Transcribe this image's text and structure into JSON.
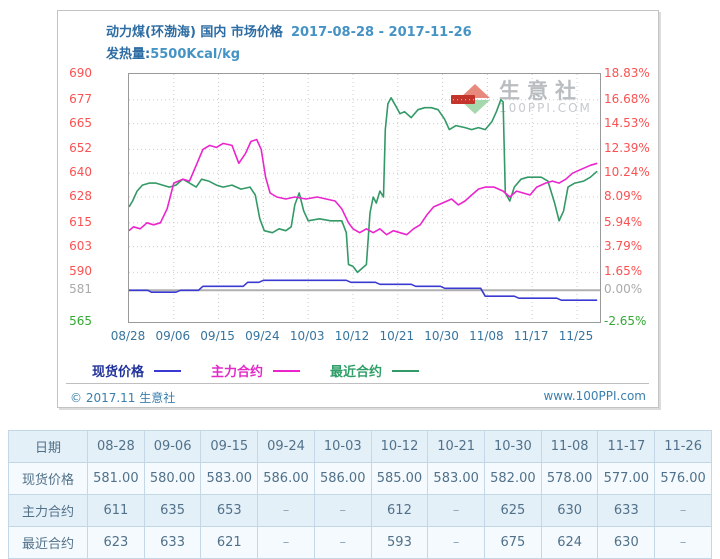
{
  "panel": {
    "title_main": "动力煤(环渤海) 国内 市场价格",
    "title_dates": "2017-08-28 - 2017-11-26",
    "subtitle_label": "发热量:",
    "subtitle_value": "5500Kcal/kg",
    "watermark_name": "生意社",
    "watermark_site": "100PPI.COM",
    "footer_left": "© 2017.11 生意社",
    "footer_right": "www.100PPI.com"
  },
  "chart_data": {
    "type": "line",
    "title": "动力煤(环渤海) 国内 市场价格 2017-08-28 - 2017-11-26",
    "subtitle": "发热量:5500Kcal/kg",
    "grid": true,
    "legend_position": "bottom",
    "ylim": [
      565,
      690
    ],
    "baseline_value": 581,
    "baseline_color": "#b0b0b0",
    "y_left_ticks": [
      690,
      677,
      665,
      652,
      640,
      628,
      615,
      603,
      590,
      581,
      565
    ],
    "y_right_tick_labels": [
      "18.83%",
      "16.68%",
      "14.53%",
      "12.39%",
      "10.24%",
      "8.09%",
      "5.94%",
      "3.79%",
      "1.65%",
      "0.00%",
      "-2.65%"
    ],
    "x_tick_labels": [
      "08/28",
      "09/06",
      "09/15",
      "09/24",
      "10/03",
      "10/12",
      "10/21",
      "10/30",
      "11/08",
      "11/17",
      "11/25"
    ],
    "tick_colors": {
      "positive": "#fa5252",
      "zero": "#aaaaaa",
      "negative": "#33aa33"
    },
    "dates": [
      "08-28",
      "09-06",
      "09-15",
      "09-24",
      "10-03",
      "10-12",
      "10-21",
      "10-30",
      "11-08",
      "11-17",
      "11-26"
    ],
    "series": [
      {
        "name": "现货价格",
        "color": "#3a3ad0",
        "label_color": "#22339b",
        "values": [
          581.0,
          580.0,
          583.0,
          586.0,
          586.0,
          585.0,
          583.0,
          582.0,
          578.0,
          577.0,
          576.0
        ]
      },
      {
        "name": "主力合约",
        "color": "#ea25cd",
        "label_color": "#e22ac8",
        "values": [
          611,
          635,
          653,
          null,
          null,
          612,
          null,
          625,
          630,
          633,
          null
        ]
      },
      {
        "name": "最近合约",
        "color": "#339966",
        "label_color": "#2f9e68",
        "values": [
          623,
          633,
          621,
          null,
          null,
          593,
          null,
          675,
          624,
          630,
          null
        ]
      }
    ],
    "render_paths": {
      "spot": [
        [
          0,
          581
        ],
        [
          0.42,
          581
        ],
        [
          0.5,
          580
        ],
        [
          1.05,
          580
        ],
        [
          1.15,
          581
        ],
        [
          1.55,
          581
        ],
        [
          1.65,
          583
        ],
        [
          2.55,
          583
        ],
        [
          2.65,
          585
        ],
        [
          2.9,
          585
        ],
        [
          3.0,
          586
        ],
        [
          4.85,
          586
        ],
        [
          4.95,
          585
        ],
        [
          5.5,
          585
        ],
        [
          5.6,
          584
        ],
        [
          6.3,
          584
        ],
        [
          6.4,
          583
        ],
        [
          6.95,
          583
        ],
        [
          7.05,
          582
        ],
        [
          7.85,
          582
        ],
        [
          7.95,
          578
        ],
        [
          8.6,
          578
        ],
        [
          8.7,
          577
        ],
        [
          9.55,
          577
        ],
        [
          9.65,
          576
        ],
        [
          10.45,
          576
        ]
      ],
      "main": [
        [
          0,
          611
        ],
        [
          0.1,
          613
        ],
        [
          0.25,
          612
        ],
        [
          0.4,
          615
        ],
        [
          0.55,
          614
        ],
        [
          0.7,
          615
        ],
        [
          0.85,
          622
        ],
        [
          1.0,
          635
        ],
        [
          1.2,
          637
        ],
        [
          1.35,
          636
        ],
        [
          1.5,
          644
        ],
        [
          1.65,
          652
        ],
        [
          1.8,
          654
        ],
        [
          1.95,
          653
        ],
        [
          2.1,
          655
        ],
        [
          2.3,
          654
        ],
        [
          2.45,
          645
        ],
        [
          2.6,
          650
        ],
        [
          2.72,
          656
        ],
        [
          2.85,
          657
        ],
        [
          2.95,
          652
        ],
        [
          3.05,
          638
        ],
        [
          3.15,
          630
        ],
        [
          3.3,
          628
        ],
        [
          3.5,
          627
        ],
        [
          3.7,
          628
        ],
        [
          3.95,
          627
        ],
        [
          4.2,
          628
        ],
        [
          4.4,
          627
        ],
        [
          4.6,
          626
        ],
        [
          4.75,
          622
        ],
        [
          4.9,
          615
        ],
        [
          5.0,
          612
        ],
        [
          5.15,
          610
        ],
        [
          5.3,
          612
        ],
        [
          5.45,
          610
        ],
        [
          5.6,
          612
        ],
        [
          5.75,
          609
        ],
        [
          5.9,
          611
        ],
        [
          6.05,
          610
        ],
        [
          6.2,
          609
        ],
        [
          6.35,
          612
        ],
        [
          6.5,
          614
        ],
        [
          6.65,
          619
        ],
        [
          6.8,
          623
        ],
        [
          7.0,
          625
        ],
        [
          7.2,
          627
        ],
        [
          7.35,
          624
        ],
        [
          7.5,
          626
        ],
        [
          7.65,
          629
        ],
        [
          7.8,
          632
        ],
        [
          7.95,
          633
        ],
        [
          8.15,
          633
        ],
        [
          8.35,
          631
        ],
        [
          8.5,
          628
        ],
        [
          8.65,
          631
        ],
        [
          8.8,
          630
        ],
        [
          8.95,
          629
        ],
        [
          9.1,
          633
        ],
        [
          9.3,
          635
        ],
        [
          9.45,
          636
        ],
        [
          9.6,
          635
        ],
        [
          9.75,
          637
        ],
        [
          9.9,
          640
        ],
        [
          10.1,
          642
        ],
        [
          10.3,
          644
        ],
        [
          10.45,
          645
        ]
      ],
      "near": [
        [
          0,
          623
        ],
        [
          0.08,
          626
        ],
        [
          0.18,
          631
        ],
        [
          0.3,
          634
        ],
        [
          0.45,
          635
        ],
        [
          0.6,
          635
        ],
        [
          0.75,
          634
        ],
        [
          0.9,
          633
        ],
        [
          1.05,
          634
        ],
        [
          1.2,
          637
        ],
        [
          1.35,
          635
        ],
        [
          1.5,
          633
        ],
        [
          1.62,
          637
        ],
        [
          1.78,
          636
        ],
        [
          1.95,
          634
        ],
        [
          2.1,
          633
        ],
        [
          2.3,
          634
        ],
        [
          2.5,
          632
        ],
        [
          2.7,
          633
        ],
        [
          2.82,
          629
        ],
        [
          2.92,
          617
        ],
        [
          3.02,
          611
        ],
        [
          3.2,
          610
        ],
        [
          3.35,
          612
        ],
        [
          3.5,
          611
        ],
        [
          3.62,
          613
        ],
        [
          3.7,
          624
        ],
        [
          3.8,
          630
        ],
        [
          3.9,
          621
        ],
        [
          4.0,
          616
        ],
        [
          4.25,
          617
        ],
        [
          4.5,
          616
        ],
        [
          4.75,
          616
        ],
        [
          4.85,
          610
        ],
        [
          4.9,
          594
        ],
        [
          5.0,
          593
        ],
        [
          5.1,
          590
        ],
        [
          5.2,
          592
        ],
        [
          5.3,
          594
        ],
        [
          5.38,
          620
        ],
        [
          5.45,
          628
        ],
        [
          5.52,
          625
        ],
        [
          5.6,
          631
        ],
        [
          5.68,
          628
        ],
        [
          5.72,
          662
        ],
        [
          5.78,
          675
        ],
        [
          5.85,
          678
        ],
        [
          5.95,
          674
        ],
        [
          6.05,
          670
        ],
        [
          6.15,
          671
        ],
        [
          6.3,
          668
        ],
        [
          6.45,
          672
        ],
        [
          6.6,
          673
        ],
        [
          6.75,
          673
        ],
        [
          6.9,
          672
        ],
        [
          7.05,
          667
        ],
        [
          7.15,
          662
        ],
        [
          7.3,
          664
        ],
        [
          7.5,
          663
        ],
        [
          7.65,
          662
        ],
        [
          7.8,
          663
        ],
        [
          7.95,
          662
        ],
        [
          8.1,
          666
        ],
        [
          8.2,
          671
        ],
        [
          8.3,
          677
        ],
        [
          8.35,
          676
        ],
        [
          8.4,
          630
        ],
        [
          8.5,
          626
        ],
        [
          8.6,
          633
        ],
        [
          8.75,
          637
        ],
        [
          8.9,
          638
        ],
        [
          9.05,
          638
        ],
        [
          9.2,
          638
        ],
        [
          9.35,
          636
        ],
        [
          9.5,
          625
        ],
        [
          9.6,
          616
        ],
        [
          9.7,
          621
        ],
        [
          9.8,
          633
        ],
        [
          9.95,
          635
        ],
        [
          10.15,
          636
        ],
        [
          10.3,
          638
        ],
        [
          10.45,
          641
        ]
      ]
    }
  },
  "table": {
    "header": [
      "日期",
      "08-28",
      "09-06",
      "09-15",
      "09-24",
      "10-03",
      "10-12",
      "10-21",
      "10-30",
      "11-08",
      "11-17",
      "11-26"
    ],
    "rows": [
      {
        "label": "现货价格",
        "values": [
          "581.00",
          "580.00",
          "583.00",
          "586.00",
          "586.00",
          "585.00",
          "583.00",
          "582.00",
          "578.00",
          "577.00",
          "576.00"
        ]
      },
      {
        "label": "主力合约",
        "values": [
          "611",
          "635",
          "653",
          "–",
          "–",
          "612",
          "–",
          "625",
          "630",
          "633",
          "–"
        ]
      },
      {
        "label": "最近合约",
        "values": [
          "623",
          "633",
          "621",
          "–",
          "–",
          "593",
          "–",
          "675",
          "624",
          "630",
          "–"
        ]
      }
    ]
  }
}
